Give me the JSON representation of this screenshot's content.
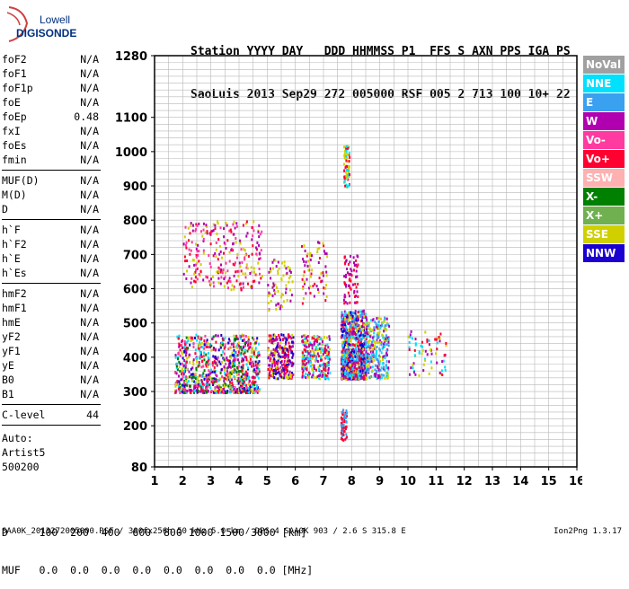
{
  "logo": {
    "line1": "Lowell",
    "line2": "DIGISONDE"
  },
  "header": {
    "line1": "Station YYYY DAY   DDD HHMMSS P1  FFS S AXN PPS IGA PS",
    "line2": "SaoLuis 2013 Sep29 272 005000 RSF 005 2 713 100 10+ 22"
  },
  "params": {
    "group1": [
      {
        "label": "foF2",
        "value": "N/A"
      },
      {
        "label": "foF1",
        "value": "N/A"
      },
      {
        "label": "foF1p",
        "value": "N/A"
      },
      {
        "label": "foE",
        "value": "N/A"
      },
      {
        "label": "foEp",
        "value": "0.48"
      },
      {
        "label": "fxI",
        "value": "N/A"
      },
      {
        "label": "foEs",
        "value": "N/A"
      },
      {
        "label": "fmin",
        "value": "N/A"
      }
    ],
    "group2": [
      {
        "label": "MUF(D)",
        "value": "N/A"
      },
      {
        "label": "M(D)",
        "value": "N/A"
      },
      {
        "label": "D",
        "value": "N/A"
      }
    ],
    "group3": [
      {
        "label": "h`F",
        "value": "N/A"
      },
      {
        "label": "h`F2",
        "value": "N/A"
      },
      {
        "label": "h`E",
        "value": "N/A"
      },
      {
        "label": "h`Es",
        "value": "N/A"
      }
    ],
    "group4": [
      {
        "label": "hmF2",
        "value": "N/A"
      },
      {
        "label": "hmF1",
        "value": "N/A"
      },
      {
        "label": "hmE",
        "value": "N/A"
      },
      {
        "label": "yF2",
        "value": "N/A"
      },
      {
        "label": "yF1",
        "value": "N/A"
      },
      {
        "label": "yE",
        "value": "N/A"
      },
      {
        "label": "B0",
        "value": "N/A"
      },
      {
        "label": "B1",
        "value": "N/A"
      }
    ],
    "group5": [
      {
        "label": "C-level",
        "value": "44"
      }
    ]
  },
  "auto": {
    "line1": "Auto:",
    "line2": "Artist5",
    "line3": "500200"
  },
  "legend": [
    {
      "label": "NoVal",
      "color": "#a0a0a0"
    },
    {
      "label": "NNE",
      "color": "#00e0ff"
    },
    {
      "label": "E",
      "color": "#3aa0f0"
    },
    {
      "label": "W",
      "color": "#b000b0"
    },
    {
      "label": "Vo-",
      "color": "#ff3aa0"
    },
    {
      "label": "Vo+",
      "color": "#ff0030"
    },
    {
      "label": "SSW",
      "color": "#ffb0b0"
    },
    {
      "label": "X-",
      "color": "#008000"
    },
    {
      "label": "X+",
      "color": "#70b050"
    },
    {
      "label": "SSE",
      "color": "#d0d000"
    },
    {
      "label": "NNW",
      "color": "#1a00d0"
    }
  ],
  "dtable": {
    "row1": "D     100  200  400  600  800 1000 1500 3000 [km]",
    "row2": "MUF   0.0  0.0  0.0  0.0  0.0  0.0  0.0  0.0 [MHz]"
  },
  "footer": {
    "text": "SAA0K_2013272005000.RSF / 300fx256h 50 kHz 5.0 km / DPS-4 SAA0K 903 / 2.6 S 315.8 E",
    "version": "Ion2Png 1.3.17"
  },
  "chart_data": {
    "type": "scatter",
    "title": "",
    "xlabel": "",
    "ylabel": "",
    "xlim": [
      1,
      16
    ],
    "ylim": [
      80,
      1280
    ],
    "x_ticks": [
      1,
      2,
      3,
      4,
      5,
      6,
      7,
      8,
      9,
      10,
      11,
      12,
      13,
      14,
      15,
      16
    ],
    "y_ticks": [
      80,
      200,
      300,
      400,
      500,
      600,
      700,
      800,
      900,
      1000,
      1100,
      1280
    ],
    "grid": true,
    "legend_position": "right",
    "clusters": [
      {
        "x": [
          1.7,
          4.7
        ],
        "y": [
          300,
          470
        ],
        "density": "high",
        "color_mix": [
          "Vo+",
          "Vo-",
          "W",
          "SSE",
          "NNW",
          "NNE",
          "X-"
        ]
      },
      {
        "x": [
          2.0,
          4.8
        ],
        "y": [
          600,
          800
        ],
        "density": "medium",
        "color_mix": [
          "SSE",
          "Vo+",
          "W",
          "Vo-"
        ]
      },
      {
        "x": [
          5.0,
          5.9
        ],
        "y": [
          340,
          470
        ],
        "density": "medium",
        "color_mix": [
          "Vo+",
          "SSE",
          "W",
          "NNW"
        ]
      },
      {
        "x": [
          5.0,
          5.9
        ],
        "y": [
          540,
          690
        ],
        "density": "low",
        "color_mix": [
          "SSE",
          "W"
        ]
      },
      {
        "x": [
          6.2,
          7.2
        ],
        "y": [
          340,
          470
        ],
        "density": "medium",
        "color_mix": [
          "Vo+",
          "SSE",
          "W",
          "NNE"
        ]
      },
      {
        "x": [
          6.2,
          7.1
        ],
        "y": [
          560,
          740
        ],
        "density": "low",
        "color_mix": [
          "W",
          "Vo+",
          "SSE"
        ]
      },
      {
        "x": [
          7.6,
          8.5
        ],
        "y": [
          340,
          540
        ],
        "density": "high",
        "color_mix": [
          "NNE",
          "E",
          "Vo+",
          "W",
          "NNW",
          "SSE"
        ]
      },
      {
        "x": [
          7.7,
          8.2
        ],
        "y": [
          560,
          700
        ],
        "density": "low",
        "color_mix": [
          "Vo+",
          "W"
        ]
      },
      {
        "x": [
          7.7,
          7.9
        ],
        "y": [
          900,
          1020
        ],
        "density": "low",
        "color_mix": [
          "SSE",
          "Vo+",
          "NNE"
        ]
      },
      {
        "x": [
          7.6,
          7.8
        ],
        "y": [
          160,
          250
        ],
        "density": "low",
        "color_mix": [
          "E",
          "Vo+"
        ]
      },
      {
        "x": [
          8.5,
          9.3
        ],
        "y": [
          340,
          520
        ],
        "density": "medium",
        "color_mix": [
          "NNE",
          "E",
          "SSE",
          "W"
        ]
      },
      {
        "x": [
          9.9,
          11.4
        ],
        "y": [
          350,
          480
        ],
        "density": "low",
        "color_mix": [
          "NNE",
          "Vo+",
          "SSE",
          "W"
        ]
      }
    ]
  }
}
